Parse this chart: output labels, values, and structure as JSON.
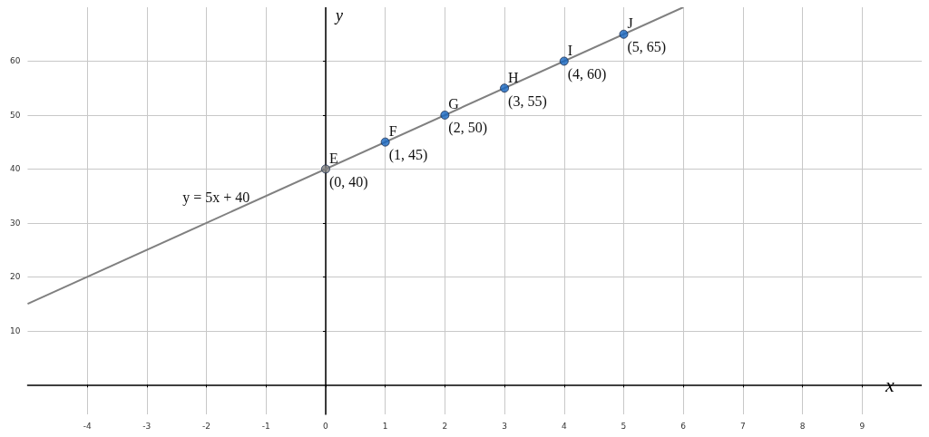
{
  "chart_data": {
    "type": "scatter",
    "xlabel": "x",
    "ylabel": "y",
    "xlim": [
      -5,
      10
    ],
    "ylim": [
      -5.5,
      70
    ],
    "xticks": [
      -4,
      -3,
      -2,
      -1,
      0,
      1,
      2,
      3,
      4,
      5,
      6,
      7,
      8,
      9
    ],
    "yticks": [
      10,
      20,
      30,
      40,
      50,
      60
    ],
    "grid": true,
    "marker": "circle",
    "series": [
      {
        "type": "line",
        "color": "#808080",
        "marker": "none",
        "x": [
          -5,
          6
        ],
        "values": [
          15,
          70
        ]
      },
      {
        "colors": [
          "#808080",
          "#1565c0",
          "#1565c0",
          "#1565c0",
          "#1565c0",
          "#1565c0"
        ],
        "x": [
          0,
          1,
          2,
          3,
          4,
          5
        ],
        "values": [
          40,
          45,
          50,
          55,
          60,
          65
        ]
      }
    ],
    "annotations": [
      {
        "text": "y = 5x + 40",
        "x": -2.4,
        "y": 28
      },
      {
        "text": "E",
        "x": 0,
        "y": 40
      },
      {
        "text": "(0, 40)",
        "x": 0,
        "y": 40
      },
      {
        "text": "F",
        "x": 1,
        "y": 45
      },
      {
        "text": "(1, 45)",
        "x": 1,
        "y": 45
      },
      {
        "text": "G",
        "x": 2,
        "y": 50
      },
      {
        "text": "(2, 50)",
        "x": 2,
        "y": 50
      },
      {
        "text": "H",
        "x": 3,
        "y": 55
      },
      {
        "text": "(3, 55)",
        "x": 3,
        "y": 55
      },
      {
        "text": "I",
        "x": 4,
        "y": 60
      },
      {
        "text": "(4, 60)",
        "x": 4,
        "y": 60
      },
      {
        "text": "J",
        "x": 5,
        "y": 65
      },
      {
        "text": "(5, 65)",
        "x": 5,
        "y": 65
      }
    ]
  }
}
